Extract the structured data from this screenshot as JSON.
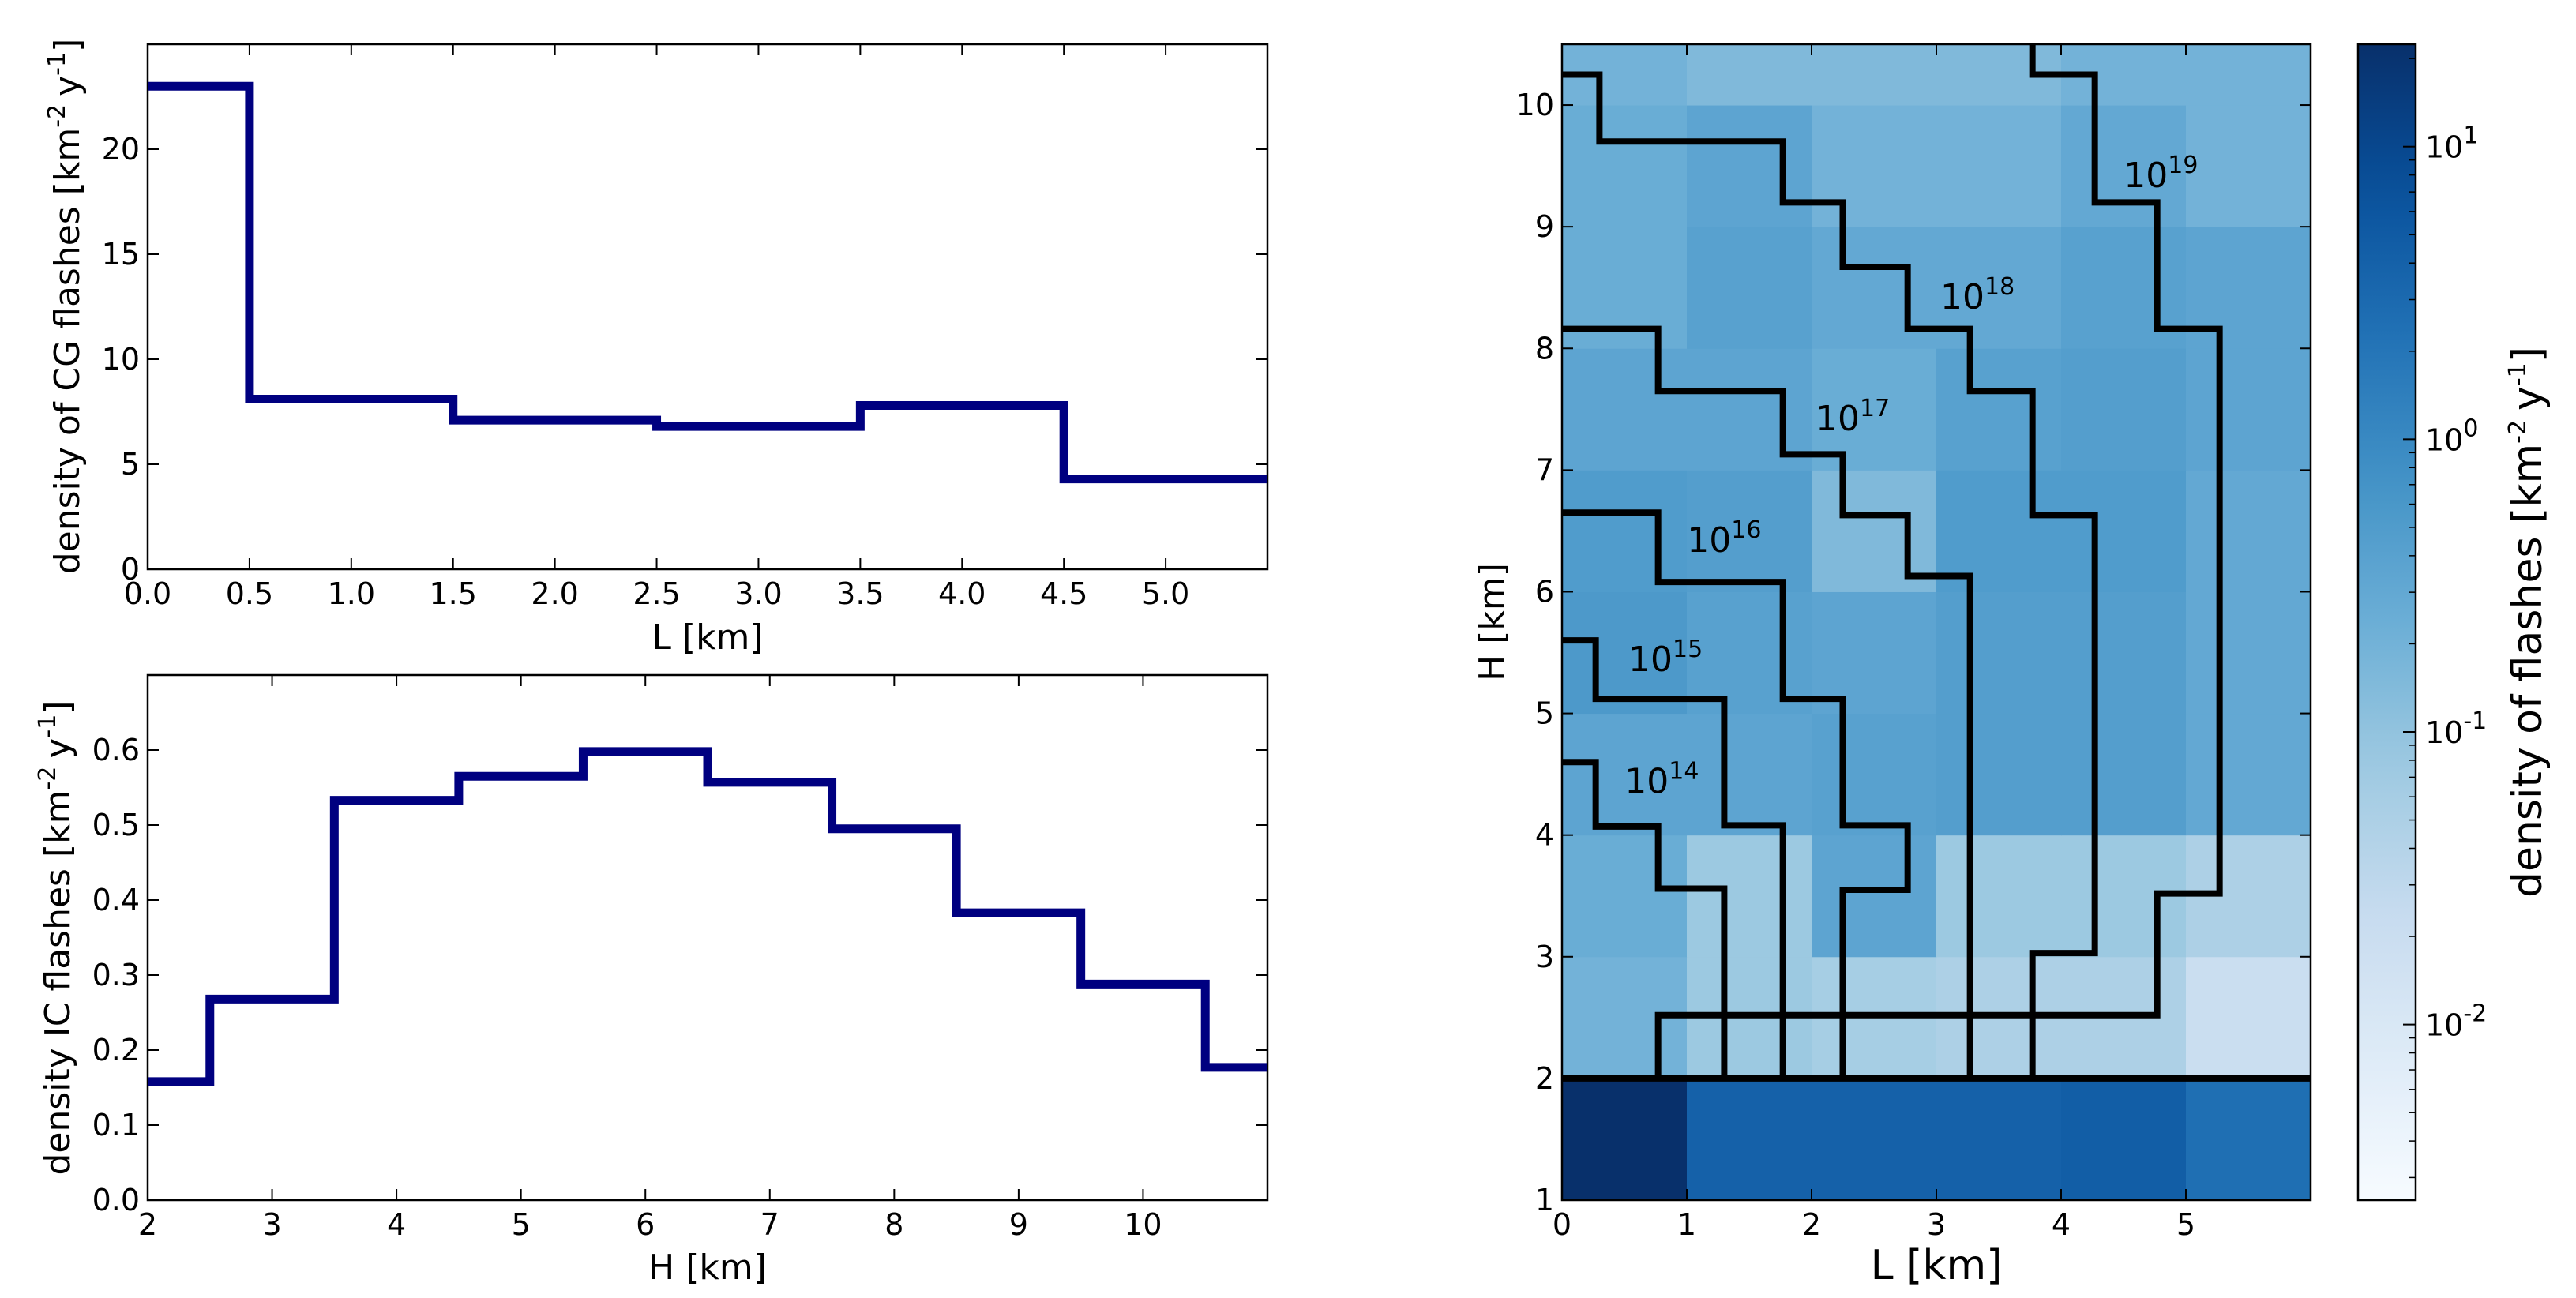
{
  "chart_data": [
    {
      "id": "cg",
      "type": "step",
      "xlabel": "L [km]",
      "ylabel": "density of CG flashes [km",
      "ylabel_sup1": "-2",
      "ylabel_mid": "y",
      "ylabel_sup2": "-1",
      "ylabel_end": "]",
      "xlim": [
        0,
        5.5
      ],
      "ylim": [
        0,
        25
      ],
      "xticks": [
        0,
        0.5,
        1,
        1.5,
        2,
        2.5,
        3,
        3.5,
        4,
        4.5,
        5
      ],
      "xtick_labels": [
        "0.0",
        "0.5",
        "1.0",
        "1.5",
        "2.0",
        "2.5",
        "3.0",
        "3.5",
        "4.0",
        "4.5",
        "5.0"
      ],
      "yticks": [
        0,
        5,
        10,
        15,
        20
      ],
      "ytick_labels": [
        "0",
        "5",
        "10",
        "15",
        "20"
      ],
      "color": "#000080",
      "steps": [
        {
          "x0": 0,
          "x1": 0.5,
          "y": 23.0
        },
        {
          "x0": 0.5,
          "x1": 1.5,
          "y": 8.1
        },
        {
          "x0": 1.5,
          "x1": 2.5,
          "y": 7.1
        },
        {
          "x0": 2.5,
          "x1": 3.5,
          "y": 6.8
        },
        {
          "x0": 3.5,
          "x1": 4.5,
          "y": 7.8
        },
        {
          "x0": 4.5,
          "x1": 5.5,
          "y": 4.3
        }
      ]
    },
    {
      "id": "ic",
      "type": "step",
      "xlabel": "H [km]",
      "ylabel": "density IC flashes [km",
      "ylabel_sup1": "-2",
      "ylabel_mid": "y",
      "ylabel_sup2": "-1",
      "ylabel_end": "]",
      "xlim": [
        2,
        11
      ],
      "ylim": [
        0,
        0.7
      ],
      "xticks": [
        2,
        3,
        4,
        5,
        6,
        7,
        8,
        9,
        10
      ],
      "xtick_labels": [
        "2",
        "3",
        "4",
        "5",
        "6",
        "7",
        "8",
        "9",
        "10"
      ],
      "yticks": [
        0,
        0.1,
        0.2,
        0.3,
        0.4,
        0.5,
        0.6
      ],
      "ytick_labels": [
        "0.0",
        "0.1",
        "0.2",
        "0.3",
        "0.4",
        "0.5",
        "0.6"
      ],
      "color": "#000080",
      "steps": [
        {
          "x0": 2,
          "x1": 2.5,
          "y": 0.158
        },
        {
          "x0": 2.5,
          "x1": 3.5,
          "y": 0.268
        },
        {
          "x0": 3.5,
          "x1": 4.5,
          "y": 0.533
        },
        {
          "x0": 4.5,
          "x1": 5.5,
          "y": 0.565
        },
        {
          "x0": 5.5,
          "x1": 6.5,
          "y": 0.598
        },
        {
          "x0": 6.5,
          "x1": 7.5,
          "y": 0.557
        },
        {
          "x0": 7.5,
          "x1": 8.5,
          "y": 0.495
        },
        {
          "x0": 8.5,
          "x1": 9.5,
          "y": 0.383
        },
        {
          "x0": 9.5,
          "x1": 10.5,
          "y": 0.288
        },
        {
          "x0": 10.5,
          "x1": 11,
          "y": 0.177
        }
      ]
    },
    {
      "id": "heatmap",
      "type": "heatmap",
      "xlabel": "L [km]",
      "ylabel": "H [km]",
      "xlim": [
        0,
        6
      ],
      "ylim": [
        1,
        10.5
      ],
      "xticks": [
        0,
        1,
        2,
        3,
        4,
        5
      ],
      "xtick_labels": [
        "0",
        "1",
        "2",
        "3",
        "4",
        "5"
      ],
      "yticks": [
        1,
        2,
        3,
        4,
        5,
        6,
        7,
        8,
        9,
        10
      ],
      "ytick_labels": [
        "1",
        "2",
        "3",
        "4",
        "5",
        "6",
        "7",
        "8",
        "9",
        "10"
      ],
      "x_edges": [
        0,
        1,
        2,
        3,
        4,
        5,
        6
      ],
      "y_edges": [
        1,
        2,
        3,
        4,
        5,
        6,
        7,
        8,
        9,
        10,
        10.5
      ],
      "cells": [
        [
          25,
          4.0,
          4.0,
          4.0,
          4.5,
          2.5
        ],
        [
          0.2,
          0.08,
          0.06,
          0.05,
          0.05,
          0.02
        ],
        [
          0.25,
          0.08,
          0.35,
          0.08,
          0.08,
          0.05
        ],
        [
          0.35,
          0.35,
          0.4,
          0.45,
          0.45,
          0.3
        ],
        [
          0.55,
          0.4,
          0.35,
          0.45,
          0.45,
          0.3
        ],
        [
          0.5,
          0.45,
          0.15,
          0.5,
          0.5,
          0.3
        ],
        [
          0.35,
          0.35,
          0.25,
          0.4,
          0.45,
          0.35
        ],
        [
          0.25,
          0.4,
          0.3,
          0.3,
          0.4,
          0.35
        ],
        [
          0.25,
          0.35,
          0.2,
          0.2,
          0.3,
          0.2
        ],
        [
          0.2,
          0.15,
          0.15,
          0.15,
          0.2,
          0.2
        ]
      ],
      "boundary_line_H": 2,
      "contours": [
        {
          "label": "10",
          "exp": "14",
          "label_pos": [
            0.8,
            4.45
          ],
          "points": [
            [
              0,
              4.6
            ],
            [
              0.27,
              4.6
            ],
            [
              0.27,
              4.07
            ],
            [
              0.77,
              4.07
            ],
            [
              0.77,
              3.56
            ],
            [
              1.3,
              3.56
            ],
            [
              1.3,
              2
            ]
          ]
        },
        {
          "label": "10",
          "exp": "15",
          "label_pos": [
            0.83,
            5.45
          ],
          "points": [
            [
              0,
              5.6
            ],
            [
              0.27,
              5.6
            ],
            [
              0.27,
              5.12
            ],
            [
              1.3,
              5.12
            ],
            [
              1.3,
              4.08
            ],
            [
              1.77,
              4.08
            ],
            [
              1.77,
              2
            ]
          ]
        },
        {
          "label": "10",
          "exp": "16",
          "label_pos": [
            1.3,
            6.43
          ],
          "points": [
            [
              0,
              6.65
            ],
            [
              0.77,
              6.65
            ],
            [
              0.77,
              6.08
            ],
            [
              1.77,
              6.08
            ],
            [
              1.77,
              5.12
            ],
            [
              2.25,
              5.12
            ],
            [
              2.25,
              4.08
            ],
            [
              2.77,
              4.08
            ],
            [
              2.77,
              3.55
            ],
            [
              2.25,
              3.55
            ],
            [
              2.25,
              2
            ]
          ]
        },
        {
          "label": "10",
          "exp": "17",
          "label_pos": [
            2.33,
            7.43
          ],
          "points": [
            [
              0,
              8.16
            ],
            [
              0.77,
              8.16
            ],
            [
              0.77,
              7.65
            ],
            [
              1.77,
              7.65
            ],
            [
              1.77,
              7.13
            ],
            [
              2.25,
              7.13
            ],
            [
              2.25,
              6.63
            ],
            [
              2.77,
              6.63
            ],
            [
              2.77,
              6.13
            ],
            [
              3.27,
              6.13
            ],
            [
              3.27,
              2
            ]
          ]
        },
        {
          "label": "10",
          "exp": "18",
          "label_pos": [
            3.33,
            8.43
          ],
          "points": [
            [
              0,
              10.25
            ],
            [
              0.3,
              10.25
            ],
            [
              0.3,
              9.7
            ],
            [
              1.77,
              9.7
            ],
            [
              1.77,
              9.2
            ],
            [
              2.25,
              9.2
            ],
            [
              2.25,
              8.67
            ],
            [
              2.77,
              8.67
            ],
            [
              2.77,
              8.16
            ],
            [
              3.27,
              8.16
            ],
            [
              3.27,
              7.65
            ],
            [
              3.77,
              7.65
            ],
            [
              3.77,
              6.63
            ],
            [
              4.27,
              6.63
            ],
            [
              4.27,
              3.03
            ],
            [
              3.77,
              3.03
            ],
            [
              3.77,
              2
            ]
          ]
        },
        {
          "label": "10",
          "exp": "19",
          "label_pos": [
            4.8,
            9.43
          ],
          "points": [
            [
              3.77,
              10.5
            ],
            [
              3.77,
              10.25
            ],
            [
              4.27,
              10.25
            ],
            [
              4.27,
              9.2
            ],
            [
              4.77,
              9.2
            ],
            [
              4.77,
              8.16
            ],
            [
              5.27,
              8.16
            ],
            [
              5.27,
              3.52
            ],
            [
              4.77,
              3.52
            ],
            [
              4.77,
              2.52
            ],
            [
              0.77,
              2.52
            ],
            [
              0.77,
              2
            ]
          ]
        }
      ],
      "colorbar": {
        "label": "density of flashes [km",
        "label_sup1": "-2",
        "label_mid": "y",
        "label_sup2": "-1",
        "label_end": "]",
        "vmin_log": -2.6,
        "vmax_log": 1.35,
        "ticks": [
          {
            "base": "10",
            "exp": "1",
            "log": 1
          },
          {
            "base": "10",
            "exp": "0",
            "log": 0
          },
          {
            "base": "10",
            "exp": "-1",
            "log": -1
          },
          {
            "base": "10",
            "exp": "-2",
            "log": -2
          }
        ]
      }
    }
  ]
}
